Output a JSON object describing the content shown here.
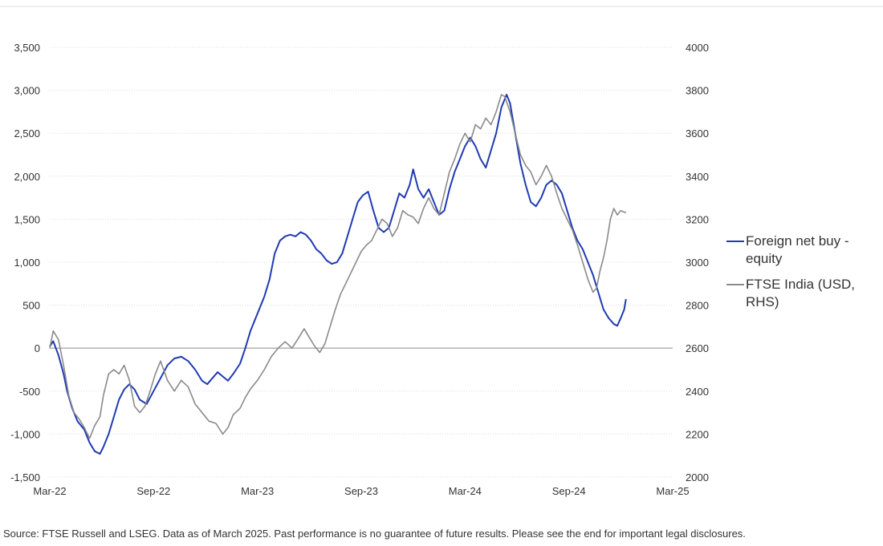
{
  "chart_data": {
    "type": "line",
    "x_ticks": [
      "Mar-22",
      "Sep-22",
      "Mar-23",
      "Sep-23",
      "Mar-24",
      "Sep-24",
      "Mar-25"
    ],
    "x_range": [
      "Mar-22",
      "Mar-25"
    ],
    "y_left": {
      "ticks": [
        "3,500",
        "3,000",
        "2,500",
        "2,000",
        "1,500",
        "1,000",
        "500",
        "0",
        "-500",
        "-1,000",
        "-1,500"
      ],
      "min": -1500,
      "max": 3500
    },
    "y_right": {
      "ticks": [
        "4000",
        "3800",
        "3600",
        "3400",
        "3200",
        "3000",
        "2800",
        "2600",
        "2400",
        "2200",
        "2000"
      ],
      "min": 2000,
      "max": 4000
    },
    "grid": true,
    "legend_placement": "right",
    "series": [
      {
        "name": "Foreign net buy - equity",
        "axis": "left",
        "color": "#1f3bb3",
        "points": [
          [
            0.0,
            20
          ],
          [
            0.2,
            80
          ],
          [
            0.5,
            -80
          ],
          [
            0.8,
            -300
          ],
          [
            1.0,
            -500
          ],
          [
            1.3,
            -700
          ],
          [
            1.6,
            -850
          ],
          [
            2.0,
            -950
          ],
          [
            2.3,
            -1100
          ],
          [
            2.6,
            -1200
          ],
          [
            2.9,
            -1230
          ],
          [
            3.1,
            -1150
          ],
          [
            3.4,
            -1000
          ],
          [
            3.7,
            -800
          ],
          [
            4.0,
            -600
          ],
          [
            4.3,
            -480
          ],
          [
            4.6,
            -420
          ],
          [
            4.9,
            -480
          ],
          [
            5.2,
            -600
          ],
          [
            5.6,
            -650
          ],
          [
            6.0,
            -500
          ],
          [
            6.4,
            -350
          ],
          [
            6.8,
            -200
          ],
          [
            7.2,
            -120
          ],
          [
            7.6,
            -100
          ],
          [
            8.0,
            -150
          ],
          [
            8.4,
            -250
          ],
          [
            8.8,
            -380
          ],
          [
            9.1,
            -420
          ],
          [
            9.4,
            -350
          ],
          [
            9.7,
            -280
          ],
          [
            10.0,
            -330
          ],
          [
            10.3,
            -380
          ],
          [
            10.6,
            -300
          ],
          [
            11.0,
            -180
          ],
          [
            11.3,
            0
          ],
          [
            11.6,
            200
          ],
          [
            12.0,
            400
          ],
          [
            12.4,
            600
          ],
          [
            12.7,
            800
          ],
          [
            13.0,
            1100
          ],
          [
            13.3,
            1250
          ],
          [
            13.6,
            1300
          ],
          [
            13.9,
            1320
          ],
          [
            14.2,
            1300
          ],
          [
            14.5,
            1350
          ],
          [
            14.8,
            1320
          ],
          [
            15.1,
            1250
          ],
          [
            15.4,
            1150
          ],
          [
            15.7,
            1100
          ],
          [
            16.0,
            1020
          ],
          [
            16.3,
            980
          ],
          [
            16.6,
            1000
          ],
          [
            16.9,
            1100
          ],
          [
            17.2,
            1300
          ],
          [
            17.5,
            1500
          ],
          [
            17.8,
            1700
          ],
          [
            18.1,
            1780
          ],
          [
            18.4,
            1820
          ],
          [
            18.7,
            1600
          ],
          [
            19.0,
            1400
          ],
          [
            19.3,
            1350
          ],
          [
            19.6,
            1400
          ],
          [
            19.9,
            1600
          ],
          [
            20.2,
            1800
          ],
          [
            20.5,
            1750
          ],
          [
            20.8,
            1900
          ],
          [
            21.0,
            2080
          ],
          [
            21.3,
            1850
          ],
          [
            21.6,
            1750
          ],
          [
            21.9,
            1850
          ],
          [
            22.2,
            1700
          ],
          [
            22.5,
            1550
          ],
          [
            22.8,
            1600
          ],
          [
            23.1,
            1850
          ],
          [
            23.4,
            2050
          ],
          [
            23.7,
            2200
          ],
          [
            24.0,
            2350
          ],
          [
            24.3,
            2450
          ],
          [
            24.6,
            2350
          ],
          [
            24.9,
            2200
          ],
          [
            25.2,
            2100
          ],
          [
            25.5,
            2300
          ],
          [
            25.8,
            2500
          ],
          [
            26.1,
            2800
          ],
          [
            26.4,
            2950
          ],
          [
            26.6,
            2850
          ],
          [
            26.9,
            2500
          ],
          [
            27.2,
            2150
          ],
          [
            27.5,
            1900
          ],
          [
            27.8,
            1700
          ],
          [
            28.1,
            1650
          ],
          [
            28.4,
            1750
          ],
          [
            28.7,
            1900
          ],
          [
            29.0,
            1950
          ],
          [
            29.3,
            1900
          ],
          [
            29.6,
            1800
          ],
          [
            29.9,
            1600
          ],
          [
            30.2,
            1400
          ],
          [
            30.5,
            1250
          ],
          [
            30.8,
            1150
          ],
          [
            31.1,
            1000
          ],
          [
            31.4,
            850
          ],
          [
            31.7,
            650
          ],
          [
            32.0,
            450
          ],
          [
            32.3,
            350
          ],
          [
            32.6,
            280
          ],
          [
            32.8,
            260
          ],
          [
            33.0,
            350
          ],
          [
            33.2,
            450
          ],
          [
            33.3,
            570
          ]
        ]
      },
      {
        "name": "FTSE India (USD, RHS)",
        "axis": "right",
        "color": "#8a8a8a",
        "points": [
          [
            0.0,
            2600
          ],
          [
            0.2,
            2680
          ],
          [
            0.5,
            2640
          ],
          [
            0.8,
            2520
          ],
          [
            1.1,
            2380
          ],
          [
            1.4,
            2300
          ],
          [
            1.7,
            2270
          ],
          [
            2.0,
            2230
          ],
          [
            2.3,
            2180
          ],
          [
            2.6,
            2240
          ],
          [
            2.9,
            2280
          ],
          [
            3.1,
            2380
          ],
          [
            3.4,
            2480
          ],
          [
            3.7,
            2500
          ],
          [
            4.0,
            2480
          ],
          [
            4.3,
            2520
          ],
          [
            4.6,
            2450
          ],
          [
            4.9,
            2330
          ],
          [
            5.2,
            2300
          ],
          [
            5.5,
            2330
          ],
          [
            5.8,
            2400
          ],
          [
            6.1,
            2480
          ],
          [
            6.4,
            2540
          ],
          [
            6.8,
            2450
          ],
          [
            7.2,
            2400
          ],
          [
            7.6,
            2450
          ],
          [
            8.0,
            2420
          ],
          [
            8.4,
            2340
          ],
          [
            8.8,
            2300
          ],
          [
            9.2,
            2260
          ],
          [
            9.6,
            2250
          ],
          [
            10.0,
            2200
          ],
          [
            10.3,
            2230
          ],
          [
            10.6,
            2290
          ],
          [
            11.0,
            2320
          ],
          [
            11.3,
            2370
          ],
          [
            11.6,
            2410
          ],
          [
            12.0,
            2450
          ],
          [
            12.4,
            2500
          ],
          [
            12.8,
            2560
          ],
          [
            13.2,
            2600
          ],
          [
            13.6,
            2630
          ],
          [
            14.0,
            2600
          ],
          [
            14.4,
            2650
          ],
          [
            14.7,
            2690
          ],
          [
            15.0,
            2650
          ],
          [
            15.3,
            2610
          ],
          [
            15.6,
            2580
          ],
          [
            15.9,
            2620
          ],
          [
            16.2,
            2700
          ],
          [
            16.5,
            2780
          ],
          [
            16.8,
            2850
          ],
          [
            17.1,
            2900
          ],
          [
            17.4,
            2950
          ],
          [
            17.7,
            3000
          ],
          [
            18.0,
            3050
          ],
          [
            18.3,
            3080
          ],
          [
            18.6,
            3100
          ],
          [
            18.9,
            3150
          ],
          [
            19.2,
            3200
          ],
          [
            19.5,
            3180
          ],
          [
            19.8,
            3120
          ],
          [
            20.1,
            3160
          ],
          [
            20.4,
            3240
          ],
          [
            20.7,
            3220
          ],
          [
            21.0,
            3210
          ],
          [
            21.3,
            3180
          ],
          [
            21.6,
            3250
          ],
          [
            21.9,
            3300
          ],
          [
            22.2,
            3250
          ],
          [
            22.5,
            3220
          ],
          [
            22.8,
            3320
          ],
          [
            23.1,
            3420
          ],
          [
            23.4,
            3480
          ],
          [
            23.7,
            3550
          ],
          [
            24.0,
            3600
          ],
          [
            24.3,
            3560
          ],
          [
            24.6,
            3640
          ],
          [
            24.9,
            3620
          ],
          [
            25.2,
            3670
          ],
          [
            25.5,
            3640
          ],
          [
            25.8,
            3700
          ],
          [
            26.1,
            3780
          ],
          [
            26.3,
            3770
          ],
          [
            26.6,
            3700
          ],
          [
            26.9,
            3600
          ],
          [
            27.2,
            3500
          ],
          [
            27.5,
            3450
          ],
          [
            27.8,
            3420
          ],
          [
            28.1,
            3360
          ],
          [
            28.4,
            3400
          ],
          [
            28.7,
            3450
          ],
          [
            29.0,
            3400
          ],
          [
            29.3,
            3320
          ],
          [
            29.6,
            3250
          ],
          [
            29.9,
            3200
          ],
          [
            30.2,
            3150
          ],
          [
            30.5,
            3080
          ],
          [
            30.8,
            3000
          ],
          [
            31.1,
            2920
          ],
          [
            31.4,
            2860
          ],
          [
            31.6,
            2880
          ],
          [
            31.8,
            2960
          ],
          [
            32.0,
            3020
          ],
          [
            32.2,
            3100
          ],
          [
            32.4,
            3200
          ],
          [
            32.6,
            3250
          ],
          [
            32.8,
            3220
          ],
          [
            33.0,
            3240
          ],
          [
            33.3,
            3230
          ]
        ]
      }
    ]
  },
  "legend": [
    {
      "label_lines": [
        "Foreign net buy -",
        "equity"
      ],
      "color": "#1f3bb3"
    },
    {
      "label_lines": [
        "FTSE India (USD,",
        "RHS)"
      ],
      "color": "#8a8a8a"
    }
  ],
  "source": "Source: FTSE Russell and LSEG. Data as of March 2025. Past performance is no guarantee of future results. Please see the end for important legal disclosures."
}
